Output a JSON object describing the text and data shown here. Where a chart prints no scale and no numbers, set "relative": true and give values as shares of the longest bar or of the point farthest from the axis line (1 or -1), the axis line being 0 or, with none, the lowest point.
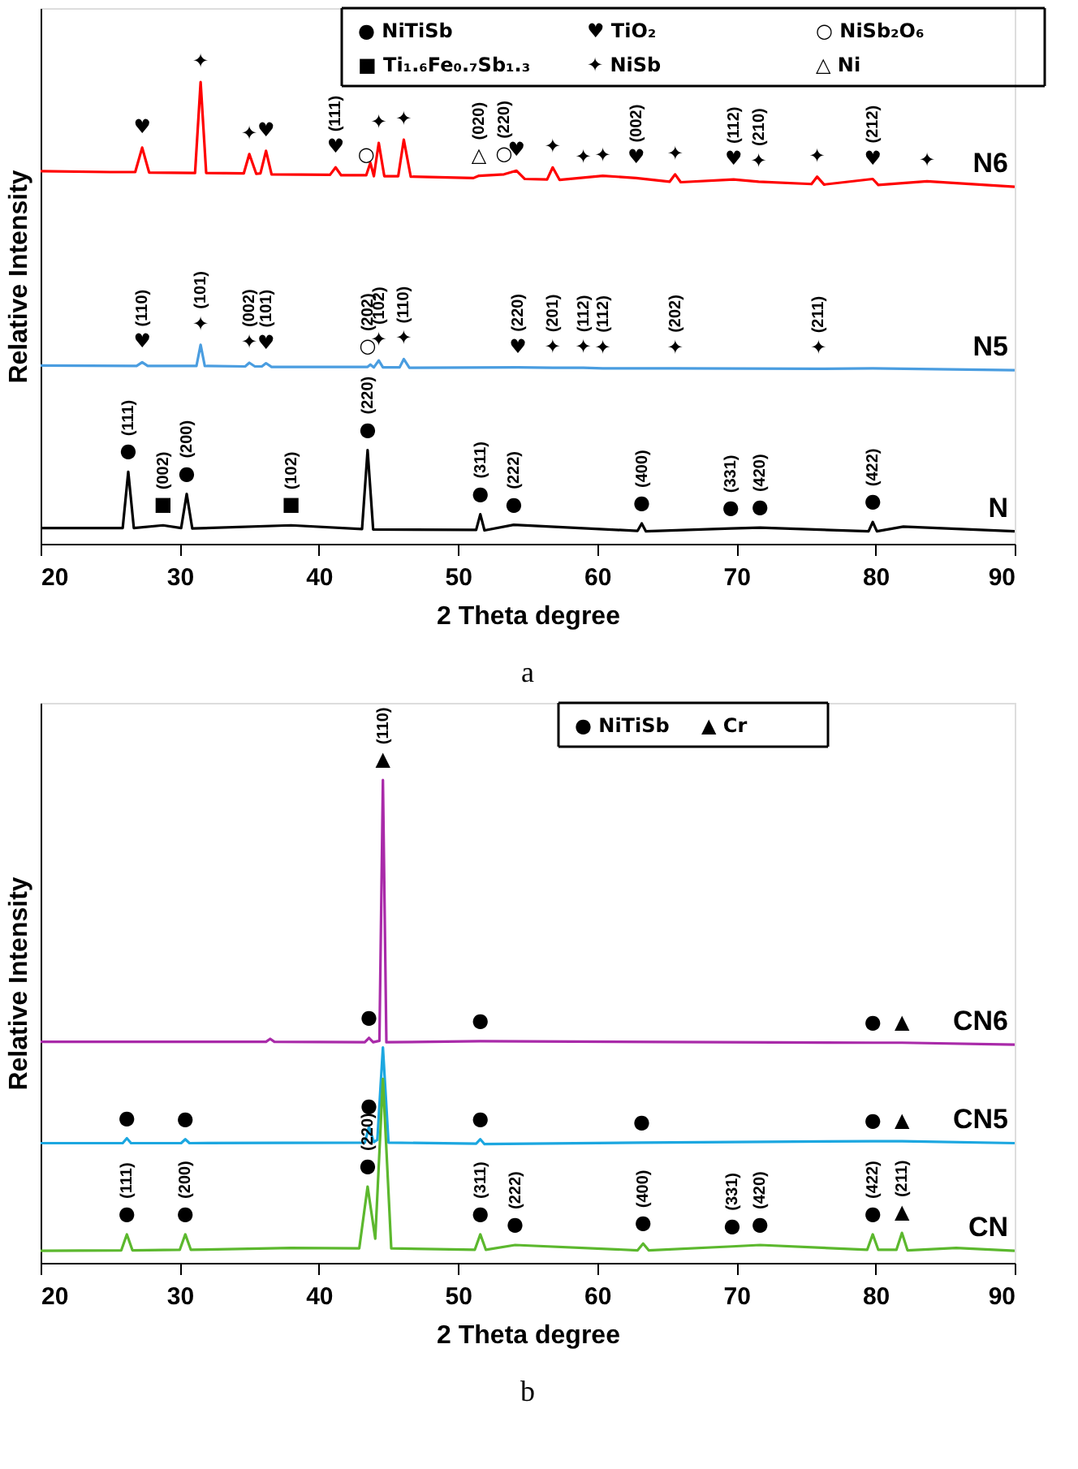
{
  "chart_data": [
    {
      "type": "line",
      "relative": true,
      "xlabel": "2 Theta degree",
      "ylabel": "Relative Intensity",
      "xlim": [
        20,
        90
      ],
      "xticks": [
        20,
        30,
        40,
        50,
        60,
        70,
        80,
        90
      ],
      "series": [
        {
          "name": "N6",
          "color": "#ff0000",
          "x": [
            20,
            25,
            26.8,
            27.3,
            27.8,
            31.1,
            31.5,
            31.9,
            34.6,
            35,
            35.5,
            35.8,
            36.2,
            36.6,
            40.8,
            41.2,
            41.6,
            43.4,
            43.7,
            43.95,
            44.3,
            44.7,
            45.7,
            46.1,
            46.6,
            51.1,
            51.5,
            53.3,
            54.2,
            54.8,
            56.4,
            56.8,
            57.3,
            59,
            60.4,
            62.8,
            65.2,
            65.6,
            66,
            69.8,
            71.6,
            75.4,
            75.8,
            76.3,
            79.8,
            80.2,
            83.7,
            90
          ],
          "values": [
            0.807,
            0.805,
            0.805,
            0.858,
            0.804,
            0.803,
            1.0,
            0.803,
            0.802,
            0.844,
            0.801,
            0.802,
            0.851,
            0.8,
            0.799,
            0.815,
            0.798,
            0.798,
            0.825,
            0.796,
            0.868,
            0.796,
            0.796,
            0.875,
            0.795,
            0.792,
            0.797,
            0.8,
            0.808,
            0.79,
            0.789,
            0.815,
            0.788,
            0.793,
            0.797,
            0.792,
            0.784,
            0.8,
            0.783,
            0.789,
            0.784,
            0.779,
            0.795,
            0.778,
            0.79,
            0.777,
            0.785,
            0.773
          ]
        },
        {
          "name": "N5",
          "color": "#4a9de0",
          "x": [
            20,
            26.9,
            27.3,
            27.7,
            31.2,
            31.5,
            31.8,
            34.7,
            35,
            35.4,
            35.9,
            36.2,
            36.6,
            43.5,
            43.7,
            43.95,
            44.3,
            44.6,
            45.8,
            46.1,
            46.5,
            54.3,
            56.8,
            59,
            60.4,
            65.6,
            75.9,
            79.8,
            90
          ],
          "values": [
            0.386,
            0.385,
            0.393,
            0.385,
            0.385,
            0.431,
            0.385,
            0.384,
            0.392,
            0.384,
            0.384,
            0.391,
            0.383,
            0.383,
            0.388,
            0.382,
            0.397,
            0.382,
            0.382,
            0.4,
            0.381,
            0.382,
            0.381,
            0.381,
            0.38,
            0.38,
            0.379,
            0.38,
            0.376
          ]
        },
        {
          "name": "N",
          "color": "#000000",
          "x": [
            20,
            25.9,
            26.3,
            26.7,
            28.8,
            30.1,
            30.5,
            30.9,
            38,
            43.1,
            43.5,
            43.9,
            51.3,
            51.6,
            51.9,
            54,
            62.9,
            63.2,
            63.5,
            69.6,
            71.7,
            79.5,
            79.8,
            80.1,
            82,
            90
          ],
          "values": [
            0.034,
            0.034,
            0.156,
            0.034,
            0.04,
            0.034,
            0.108,
            0.033,
            0.04,
            0.032,
            0.203,
            0.031,
            0.03,
            0.064,
            0.029,
            0.041,
            0.028,
            0.044,
            0.027,
            0.033,
            0.035,
            0.027,
            0.047,
            0.027,
            0.037,
            0.027
          ]
        }
      ],
      "annotations": [
        {
          "text": "♥",
          "x": 27.3,
          "y": 0.858
        },
        {
          "text": "✦",
          "x": 31.5,
          "y": 1.0
        },
        {
          "text": "✦",
          "x": 35,
          "y": 0.844
        },
        {
          "text": "♥",
          "x": 36.2,
          "y": 0.851
        },
        {
          "text": "♥",
          "x": 41.2,
          "y": 0.815
        },
        {
          "text": "(111)",
          "x": 41.2,
          "y": 0.815
        },
        {
          "text": "○",
          "x": 43.4,
          "y": 0.798
        },
        {
          "text": "✦",
          "x": 44.3,
          "y": 0.868
        },
        {
          "text": "✦",
          "x": 46.1,
          "y": 0.875
        },
        {
          "text": "△",
          "x": 51.5,
          "y": 0.797
        },
        {
          "text": "(020)",
          "x": 51.5,
          "y": 0.797
        },
        {
          "text": "○",
          "x": 53.3,
          "y": 0.8
        },
        {
          "text": "(220)",
          "x": 53.3,
          "y": 0.8
        },
        {
          "text": "♥",
          "x": 54.2,
          "y": 0.808
        },
        {
          "text": "✦",
          "x": 56.8,
          "y": 0.815
        },
        {
          "text": "✦",
          "x": 59,
          "y": 0.793
        },
        {
          "text": "✦",
          "x": 60.4,
          "y": 0.797
        },
        {
          "text": "♥",
          "x": 62.8,
          "y": 0.792
        },
        {
          "text": "(002)",
          "x": 62.8,
          "y": 0.792
        },
        {
          "text": "✦",
          "x": 65.6,
          "y": 0.8
        },
        {
          "text": "♥",
          "x": 69.8,
          "y": 0.789
        },
        {
          "text": "(112)",
          "x": 69.8,
          "y": 0.789
        },
        {
          "text": "✦",
          "x": 71.6,
          "y": 0.784
        },
        {
          "text": "(210)",
          "x": 71.6,
          "y": 0.784
        },
        {
          "text": "✦",
          "x": 75.8,
          "y": 0.795
        },
        {
          "text": "♥",
          "x": 79.8,
          "y": 0.79
        },
        {
          "text": "(212)",
          "x": 79.8,
          "y": 0.79
        },
        {
          "text": "✦",
          "x": 83.7,
          "y": 0.785
        },
        {
          "text": "♥",
          "x": 27.3,
          "y": 0.393
        },
        {
          "text": "(110)",
          "x": 27.3,
          "y": 0.393
        },
        {
          "text": "✦",
          "x": 31.5,
          "y": 0.431
        },
        {
          "text": "(101)",
          "x": 31.5,
          "y": 0.431
        },
        {
          "text": "✦",
          "x": 35,
          "y": 0.392
        },
        {
          "text": "(002)",
          "x": 35,
          "y": 0.392
        },
        {
          "text": "♥",
          "x": 36.2,
          "y": 0.391
        },
        {
          "text": "(101)",
          "x": 36.2,
          "y": 0.391
        },
        {
          "text": "○",
          "x": 43.5,
          "y": 0.383
        },
        {
          "text": "(202)",
          "x": 43.5,
          "y": 0.383
        },
        {
          "text": "✦",
          "x": 44.3,
          "y": 0.397
        },
        {
          "text": "(102)",
          "x": 44.3,
          "y": 0.397
        },
        {
          "text": "✦",
          "x": 46.1,
          "y": 0.4
        },
        {
          "text": "(110)",
          "x": 46.1,
          "y": 0.4
        },
        {
          "text": "♥",
          "x": 54.3,
          "y": 0.382
        },
        {
          "text": "(220)",
          "x": 54.3,
          "y": 0.382
        },
        {
          "text": "✦",
          "x": 56.8,
          "y": 0.381
        },
        {
          "text": "(201)",
          "x": 56.8,
          "y": 0.381
        },
        {
          "text": "✦",
          "x": 59,
          "y": 0.381
        },
        {
          "text": "(112)",
          "x": 59,
          "y": 0.381
        },
        {
          "text": "✦",
          "x": 60.4,
          "y": 0.38
        },
        {
          "text": "(112)",
          "x": 60.4,
          "y": 0.38
        },
        {
          "text": "✦",
          "x": 65.6,
          "y": 0.38
        },
        {
          "text": "(202)",
          "x": 65.6,
          "y": 0.38
        },
        {
          "text": "✦",
          "x": 75.9,
          "y": 0.379
        },
        {
          "text": "(211)",
          "x": 75.9,
          "y": 0.379
        },
        {
          "text": "●",
          "x": 26.3,
          "y": 0.156
        },
        {
          "text": "(111)",
          "x": 26.3,
          "y": 0.156
        },
        {
          "text": "■",
          "x": 28.8,
          "y": 0.04
        },
        {
          "text": "(002)",
          "x": 28.8,
          "y": 0.04
        },
        {
          "text": "●",
          "x": 30.5,
          "y": 0.108
        },
        {
          "text": "(200)",
          "x": 30.5,
          "y": 0.108
        },
        {
          "text": "■",
          "x": 38,
          "y": 0.04
        },
        {
          "text": "(102)",
          "x": 38,
          "y": 0.04
        },
        {
          "text": "●",
          "x": 43.5,
          "y": 0.203
        },
        {
          "text": "(220)",
          "x": 43.5,
          "y": 0.203
        },
        {
          "text": "●",
          "x": 51.6,
          "y": 0.064
        },
        {
          "text": "(311)",
          "x": 51.6,
          "y": 0.064
        },
        {
          "text": "●",
          "x": 54,
          "y": 0.041
        },
        {
          "text": "(222)",
          "x": 54,
          "y": 0.041
        },
        {
          "text": "●",
          "x": 63.2,
          "y": 0.044
        },
        {
          "text": "(400)",
          "x": 63.2,
          "y": 0.044
        },
        {
          "text": "●",
          "x": 69.6,
          "y": 0.033
        },
        {
          "text": "(331)",
          "x": 69.6,
          "y": 0.033
        },
        {
          "text": "●",
          "x": 71.7,
          "y": 0.035
        },
        {
          "text": "(420)",
          "x": 71.7,
          "y": 0.035
        },
        {
          "text": "●",
          "x": 79.8,
          "y": 0.047
        },
        {
          "text": "(422)",
          "x": 79.8,
          "y": 0.047
        },
        "● NiTiSb",
        "♥ TiO₂",
        "○ NiSb₂O₆",
        "■ Ti₁.₆Fe₀.₇Sb₁.₃",
        "✦ NiSb",
        "△ Ni",
        "a"
      ]
    },
    {
      "type": "line",
      "relative": true,
      "xlabel": "2 Theta degree",
      "ylabel": "Relative Intensity",
      "xlim": [
        20,
        90
      ],
      "xticks": [
        20,
        30,
        40,
        50,
        60,
        70,
        80,
        90
      ],
      "series": [
        {
          "name": "CN6",
          "color": "#a92aa9",
          "x": [
            20,
            36.2,
            36.5,
            36.8,
            43.3,
            43.6,
            43.9,
            44.35,
            44.6,
            44.85,
            51.6,
            79.8,
            81.9,
            90
          ],
          "values": [
            0.458,
            0.458,
            0.464,
            0.458,
            0.457,
            0.466,
            0.457,
            0.46,
            1.0,
            0.457,
            0.459,
            0.456,
            0.456,
            0.452
          ]
        },
        {
          "name": "CN5",
          "color": "#1ca7e0",
          "x": [
            20,
            25.9,
            26.2,
            26.5,
            30.1,
            30.4,
            30.7,
            43.3,
            43.6,
            43.95,
            44.2,
            44.6,
            45,
            51.3,
            51.6,
            51.9,
            63.2,
            79.8,
            81.9,
            90
          ],
          "values": [
            0.248,
            0.248,
            0.258,
            0.248,
            0.248,
            0.256,
            0.248,
            0.249,
            0.282,
            0.25,
            0.255,
            0.446,
            0.249,
            0.247,
            0.256,
            0.246,
            0.249,
            0.252,
            0.252,
            0.248
          ]
        },
        {
          "name": "CN",
          "color": "#5cb82e",
          "x": [
            20,
            25.8,
            26.2,
            26.6,
            30,
            30.4,
            30.8,
            38,
            42.9,
            43.5,
            44.05,
            44.6,
            45.2,
            51.2,
            51.6,
            52,
            54.1,
            62.9,
            63.3,
            63.7,
            69.7,
            71.7,
            79.4,
            79.8,
            80.2,
            81.5,
            81.9,
            82.3,
            85.8,
            90
          ],
          "values": [
            0.025,
            0.026,
            0.059,
            0.026,
            0.027,
            0.059,
            0.027,
            0.031,
            0.03,
            0.158,
            0.05,
            0.381,
            0.03,
            0.027,
            0.059,
            0.027,
            0.037,
            0.026,
            0.04,
            0.026,
            0.034,
            0.037,
            0.027,
            0.059,
            0.027,
            0.027,
            0.062,
            0.026,
            0.031,
            0.025
          ]
        }
      ],
      "annotations": [
        {
          "text": "●",
          "x": 43.6,
          "y": 0.466
        },
        {
          "text": "▲",
          "x": 44.6,
          "y": 1.0
        },
        {
          "text": "(110)",
          "x": 44.6,
          "y": 1.0
        },
        {
          "text": "●",
          "x": 51.6,
          "y": 0.459
        },
        {
          "text": "●",
          "x": 79.8,
          "y": 0.456
        },
        {
          "text": "▲",
          "x": 81.9,
          "y": 0.456
        },
        {
          "text": "●",
          "x": 26.2,
          "y": 0.258
        },
        {
          "text": "●",
          "x": 30.4,
          "y": 0.256
        },
        {
          "text": "●",
          "x": 43.6,
          "y": 0.282
        },
        {
          "text": "●",
          "x": 51.6,
          "y": 0.256
        },
        {
          "text": "●",
          "x": 63.2,
          "y": 0.249
        },
        {
          "text": "●",
          "x": 79.8,
          "y": 0.252
        },
        {
          "text": "▲",
          "x": 81.9,
          "y": 0.252
        },
        {
          "text": "●",
          "x": 26.2,
          "y": 0.059
        },
        {
          "text": "(111)",
          "x": 26.2,
          "y": 0.059
        },
        {
          "text": "●",
          "x": 30.4,
          "y": 0.059
        },
        {
          "text": "(200)",
          "x": 30.4,
          "y": 0.059
        },
        {
          "text": "●",
          "x": 43.5,
          "y": 0.158
        },
        {
          "text": "(220)",
          "x": 43.5,
          "y": 0.158
        },
        {
          "text": "●",
          "x": 51.6,
          "y": 0.059
        },
        {
          "text": "(311)",
          "x": 51.6,
          "y": 0.059
        },
        {
          "text": "●",
          "x": 54.1,
          "y": 0.037
        },
        {
          "text": "(222)",
          "x": 54.1,
          "y": 0.037
        },
        {
          "text": "●",
          "x": 63.3,
          "y": 0.04
        },
        {
          "text": "(400)",
          "x": 63.3,
          "y": 0.04
        },
        {
          "text": "●",
          "x": 69.7,
          "y": 0.034
        },
        {
          "text": "(331)",
          "x": 69.7,
          "y": 0.034
        },
        {
          "text": "●",
          "x": 71.7,
          "y": 0.037
        },
        {
          "text": "(420)",
          "x": 71.7,
          "y": 0.037
        },
        {
          "text": "●",
          "x": 79.8,
          "y": 0.059
        },
        {
          "text": "(422)",
          "x": 79.8,
          "y": 0.059
        },
        {
          "text": "▲",
          "x": 81.9,
          "y": 0.062
        },
        {
          "text": "(211)",
          "x": 81.9,
          "y": 0.062
        },
        "● NiTiSb",
        "▲ Cr",
        "b"
      ]
    }
  ]
}
